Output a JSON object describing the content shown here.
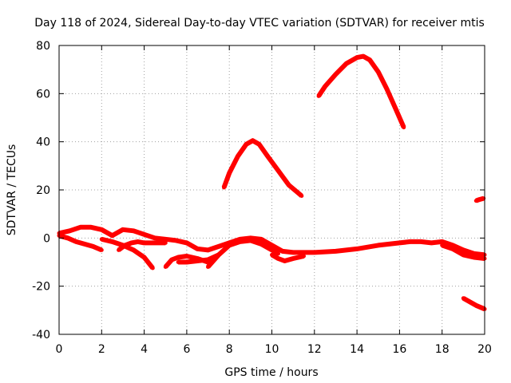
{
  "chart_data": {
    "type": "scatter",
    "title": "Day 118 of 2024, Sidereal Day-to-day VTEC variation (SDTVAR) for receiver mtis",
    "xlabel": "GPS time / hours",
    "ylabel": "SDTVAR / TECUs",
    "xlim": [
      0,
      20
    ],
    "ylim": [
      -40,
      80
    ],
    "xticks": [
      0,
      2,
      4,
      6,
      8,
      10,
      12,
      14,
      16,
      18,
      20
    ],
    "yticks": [
      -40,
      -20,
      0,
      20,
      40,
      60,
      80
    ],
    "grid": true,
    "series_color": "#ff0000",
    "series": [
      {
        "name": "arc-1",
        "x": [
          7.75,
          8.0,
          8.4,
          8.8,
          9.1,
          9.4,
          9.8,
          10.3,
          10.8,
          11.2,
          11.4
        ],
        "y": [
          21,
          27,
          34,
          39,
          40.5,
          39,
          34,
          28,
          22,
          19,
          17.5
        ]
      },
      {
        "name": "arc-2",
        "x": [
          12.2,
          12.5,
          13.0,
          13.5,
          14.0,
          14.3,
          14.6,
          15.0,
          15.4,
          15.8,
          16.2
        ],
        "y": [
          59,
          63,
          68,
          72.5,
          75,
          75.5,
          74,
          69,
          62,
          54,
          46
        ]
      },
      {
        "name": "low-main",
        "x": [
          0.0,
          0.5,
          1.0,
          1.5,
          2.0,
          2.5,
          3.0,
          3.5,
          4.0,
          4.5,
          5.0,
          5.5,
          6.0,
          6.5,
          7.0,
          7.5,
          8.0,
          8.5,
          9.0,
          9.5,
          10.0,
          10.5,
          11.0,
          12.0,
          13.0,
          14.0,
          15.0,
          16.0,
          16.5,
          17.0,
          17.5,
          18.0,
          18.5,
          19.0,
          19.5,
          20.0
        ],
        "y": [
          2,
          3,
          4.5,
          4.5,
          3.5,
          1,
          3.5,
          3,
          1.5,
          0,
          -0.5,
          -1,
          -2,
          -4.5,
          -5,
          -3.5,
          -2,
          -0.5,
          0,
          -0.5,
          -3,
          -5.5,
          -6,
          -6,
          -5.5,
          -4.5,
          -3,
          -2,
          -1.5,
          -1.5,
          -2,
          -1.5,
          -3,
          -5,
          -6.5,
          -7
        ]
      },
      {
        "name": "low-aux-1",
        "x": [
          0.0,
          0.4,
          0.8,
          1.2,
          1.6,
          2.0
        ],
        "y": [
          1,
          0,
          -1.5,
          -2.5,
          -3.5,
          -5
        ]
      },
      {
        "name": "low-aux-2",
        "x": [
          2.0,
          2.5,
          3.0,
          3.5,
          4.0,
          4.4
        ],
        "y": [
          -0.5,
          -1.5,
          -3,
          -5,
          -8,
          -12.5
        ]
      },
      {
        "name": "low-aux-3",
        "x": [
          2.8,
          3.1,
          3.4,
          3.7,
          4.0,
          4.5,
          5.0
        ],
        "y": [
          -5,
          -3,
          -2,
          -1.5,
          -2,
          -2,
          -2
        ]
      },
      {
        "name": "low-aux-4",
        "x": [
          5.0,
          5.3,
          5.6,
          6.0,
          6.5,
          7.0
        ],
        "y": [
          -12,
          -9,
          -8,
          -7.5,
          -8.5,
          -10
        ]
      },
      {
        "name": "low-aux-5",
        "x": [
          5.6,
          6.0,
          6.5,
          7.0,
          7.5
        ],
        "y": [
          -10,
          -10,
          -9.5,
          -9,
          -7
        ]
      },
      {
        "name": "low-aux-6",
        "x": [
          7.0,
          7.5,
          8.0,
          8.5,
          9.0,
          9.5,
          10.0,
          10.3
        ],
        "y": [
          -12,
          -7,
          -3,
          -1.5,
          -1,
          -2.5,
          -5,
          -6.5
        ]
      },
      {
        "name": "low-aux-7",
        "x": [
          10.0,
          10.3,
          10.6,
          11.0,
          11.5
        ],
        "y": [
          -7,
          -8.5,
          -9.5,
          -8.5,
          -7.5
        ]
      },
      {
        "name": "low-aux-8",
        "x": [
          18.0,
          18.5,
          19.0,
          19.5,
          20.0
        ],
        "y": [
          -3,
          -4.5,
          -7,
          -8,
          -8.5
        ]
      },
      {
        "name": "late-low",
        "x": [
          19.0,
          19.3,
          19.6,
          20.0
        ],
        "y": [
          -25,
          -26.5,
          -28,
          -29.5
        ]
      },
      {
        "name": "late-high",
        "x": [
          19.6,
          19.75,
          19.95
        ],
        "y": [
          15.5,
          16,
          16.5
        ]
      }
    ]
  }
}
